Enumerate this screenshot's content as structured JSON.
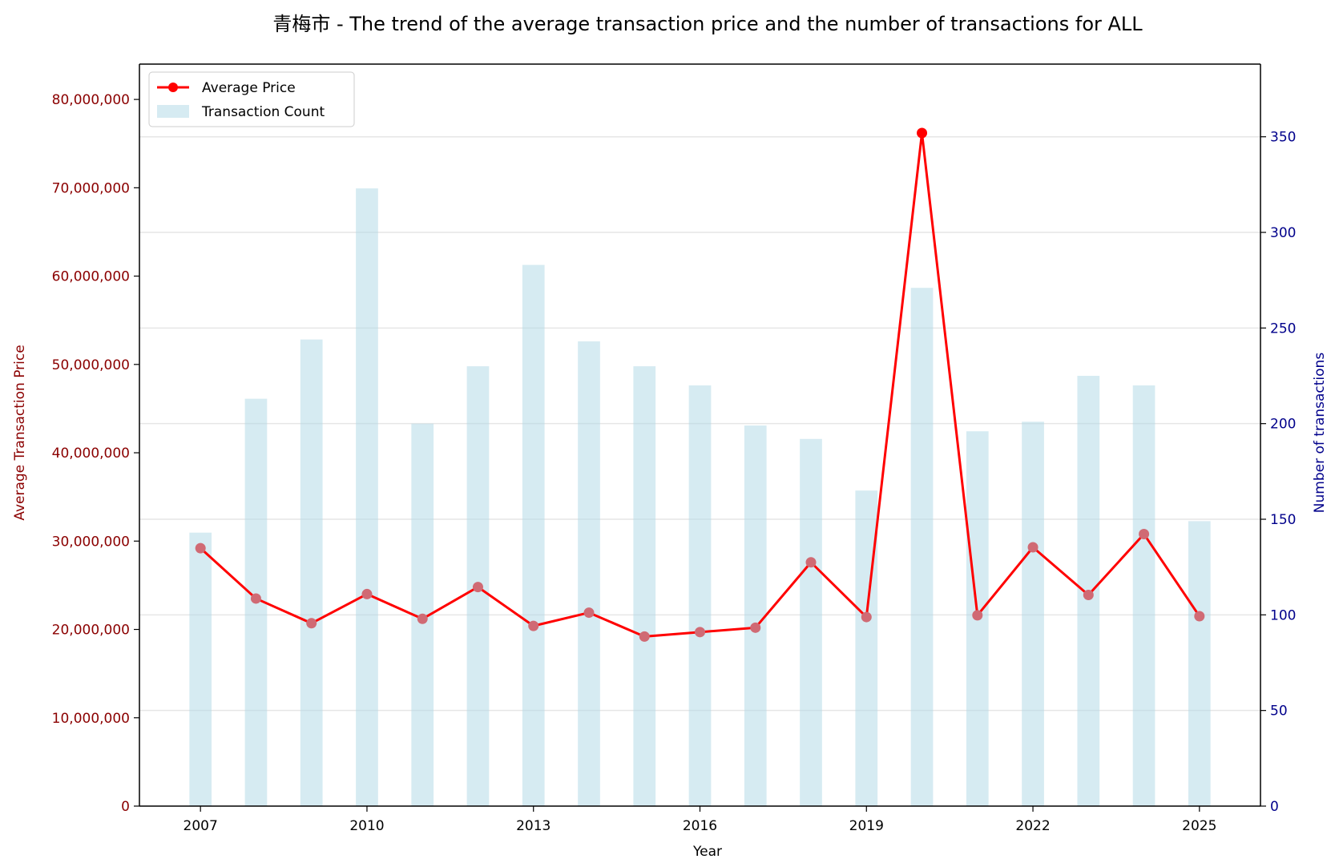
{
  "chart_data": {
    "type": "bar+line",
    "title": "青梅市 - The trend of the average transaction price and the number of transactions for ALL",
    "xlabel": "Year",
    "ylabel_left": "Average Transaction Price",
    "ylabel_right": "Number of transactions",
    "x": [
      2007,
      2008,
      2009,
      2010,
      2011,
      2012,
      2013,
      2014,
      2015,
      2016,
      2017,
      2018,
      2019,
      2020,
      2021,
      2022,
      2023,
      2024,
      2025
    ],
    "x_ticks": [
      "2007",
      "2010",
      "2013",
      "2016",
      "2019",
      "2022",
      "2025"
    ],
    "x_tick_values": [
      2007,
      2010,
      2013,
      2016,
      2019,
      2022,
      2025
    ],
    "xlim": [
      2005.9,
      2026.1
    ],
    "series": [
      {
        "name": "Average Price",
        "kind": "line",
        "axis": "left",
        "color": "#ff0000",
        "values": [
          29200000,
          23500000,
          20700000,
          24000000,
          21200000,
          24800000,
          20400000,
          21900000,
          19200000,
          19700000,
          20200000,
          27600000,
          21400000,
          76200000,
          21600000,
          29300000,
          23900000,
          30800000,
          21500000
        ]
      },
      {
        "name": "Transaction Count",
        "kind": "bar",
        "axis": "right",
        "color": "#add8e6",
        "values": [
          143,
          213,
          244,
          323,
          200,
          230,
          283,
          243,
          230,
          220,
          199,
          192,
          165,
          271,
          196,
          201,
          225,
          220,
          149
        ]
      }
    ],
    "ylim_left": [
      0,
      84000000
    ],
    "yticks_left": [
      "0",
      "10,000,000",
      "20,000,000",
      "30,000,000",
      "40,000,000",
      "50,000,000",
      "60,000,000",
      "70,000,000",
      "80,000,000"
    ],
    "ytick_values_left": [
      0,
      10000000,
      20000000,
      30000000,
      40000000,
      50000000,
      60000000,
      70000000,
      80000000
    ],
    "ylim_right": [
      0,
      388
    ],
    "yticks_right": [
      "0",
      "50",
      "100",
      "150",
      "200",
      "250",
      "300",
      "350"
    ],
    "ytick_values_right": [
      0,
      50,
      100,
      150,
      200,
      250,
      300,
      350
    ],
    "grid": "horizontal (right axis)",
    "legend": "top-left",
    "colors": {
      "left_axis": "#8b0000",
      "right_axis": "#00008b",
      "line": "#ff0000",
      "marker_muted": "#d06a74",
      "bar": "#add8e6",
      "grid": "#e6e6e6"
    }
  }
}
